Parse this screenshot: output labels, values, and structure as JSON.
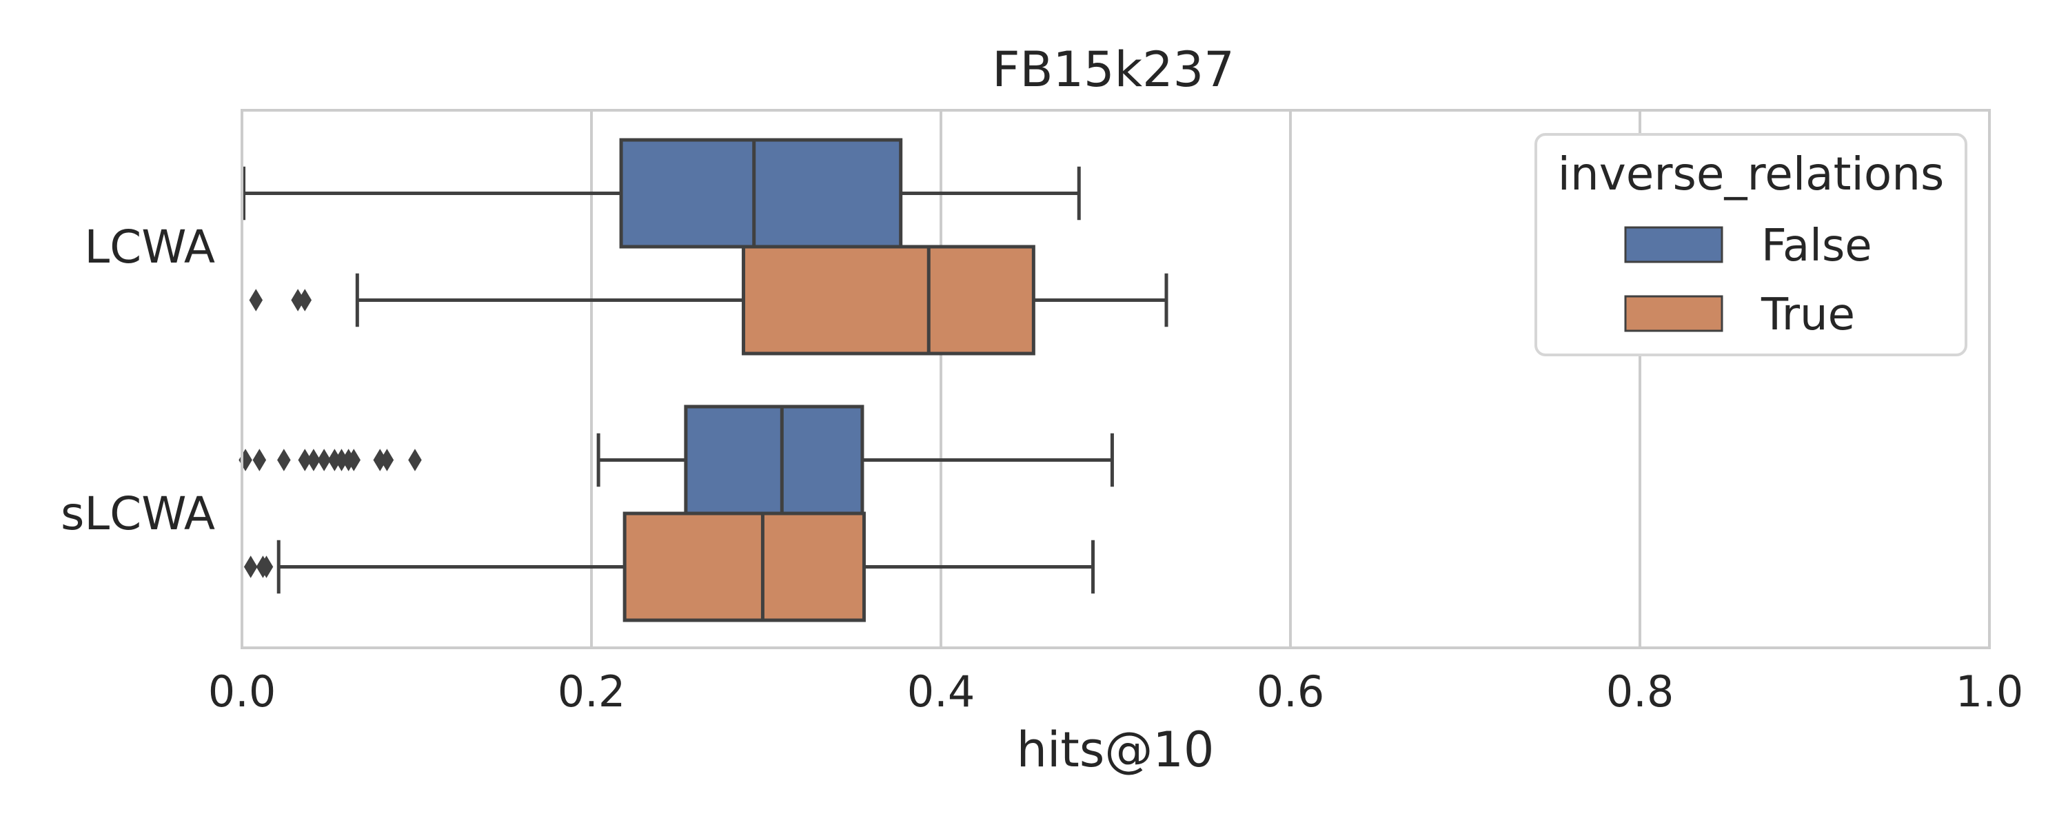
{
  "chart_data": {
    "type": "boxplot",
    "orientation": "horizontal",
    "title": "FB15k237",
    "xlabel": "hits@10",
    "ylabel": "",
    "xlim": [
      0.0,
      1.0
    ],
    "x_ticks": [
      0.0,
      0.2,
      0.4,
      0.6,
      0.8,
      1.0
    ],
    "x_tick_labels": [
      "0.0",
      "0.2",
      "0.4",
      "0.6",
      "0.8",
      "1.0"
    ],
    "grid": "x",
    "categories": [
      "LCWA",
      "sLCWA"
    ],
    "legend": {
      "title": "inverse_relations",
      "position": "top-right",
      "entries": [
        {
          "label": "False",
          "color": "#5875a4"
        },
        {
          "label": "True",
          "color": "#cc8963"
        }
      ]
    },
    "series": [
      {
        "name": "False",
        "color": "#5875a4",
        "boxes": [
          {
            "category": "LCWA",
            "whisker_low": 0.001,
            "q1": 0.217,
            "median": 0.293,
            "q3": 0.377,
            "whisker_high": 0.479,
            "outliers": []
          },
          {
            "category": "sLCWA",
            "whisker_low": 0.204,
            "q1": 0.254,
            "median": 0.309,
            "q3": 0.355,
            "whisker_high": 0.498,
            "outliers": [
              0.002,
              0.01,
              0.024,
              0.036,
              0.041,
              0.047,
              0.053,
              0.057,
              0.061,
              0.064,
              0.079,
              0.083,
              0.099
            ]
          }
        ]
      },
      {
        "name": "True",
        "color": "#cc8963",
        "boxes": [
          {
            "category": "LCWA",
            "whisker_low": 0.066,
            "q1": 0.287,
            "median": 0.393,
            "q3": 0.453,
            "whisker_high": 0.529,
            "outliers": [
              0.008,
              0.032,
              0.036
            ]
          },
          {
            "category": "sLCWA",
            "whisker_low": 0.021,
            "q1": 0.219,
            "median": 0.298,
            "q3": 0.356,
            "whisker_high": 0.487,
            "outliers": [
              0.005,
              0.012,
              0.014
            ]
          }
        ]
      }
    ]
  }
}
